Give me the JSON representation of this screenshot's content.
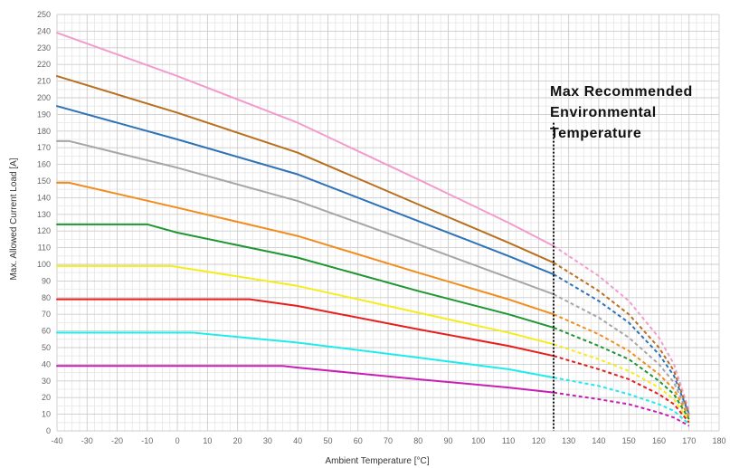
{
  "chart_data": {
    "type": "line",
    "title": "",
    "xlabel": "Ambient Temperature [°C]",
    "ylabel": "Max. Allowed Current Load [A]",
    "xlim": [
      -40,
      180
    ],
    "ylim": [
      0,
      250
    ],
    "x_ticks": [
      -40,
      -30,
      -20,
      -10,
      0,
      10,
      20,
      30,
      40,
      50,
      60,
      70,
      80,
      90,
      100,
      110,
      120,
      130,
      140,
      150,
      160,
      170,
      180
    ],
    "y_ticks": [
      0,
      10,
      20,
      30,
      40,
      50,
      60,
      70,
      80,
      90,
      100,
      110,
      120,
      130,
      140,
      150,
      160,
      170,
      180,
      190,
      200,
      210,
      220,
      230,
      240,
      250
    ],
    "grid": true,
    "legend": "none",
    "max_temp_marker": {
      "x": 125,
      "ymax": 185
    },
    "annotation": [
      "Max Recommended",
      "Environmental",
      "Temperature"
    ],
    "series": [
      {
        "color": "#f29ccd",
        "values": [
          [
            -40,
            239
          ],
          [
            0,
            213
          ],
          [
            40,
            185
          ],
          [
            80,
            151
          ],
          [
            110,
            125
          ],
          [
            125,
            111
          ],
          [
            140,
            93
          ],
          [
            150,
            78
          ],
          [
            160,
            56
          ],
          [
            165,
            40
          ],
          [
            170,
            12
          ]
        ]
      },
      {
        "color": "#b8701e",
        "values": [
          [
            -40,
            213
          ],
          [
            0,
            191
          ],
          [
            40,
            167
          ],
          [
            80,
            136
          ],
          [
            110,
            113
          ],
          [
            125,
            101
          ],
          [
            140,
            84
          ],
          [
            150,
            70
          ],
          [
            160,
            50
          ],
          [
            165,
            36
          ],
          [
            170,
            10
          ]
        ]
      },
      {
        "color": "#2e73b8",
        "values": [
          [
            -40,
            195
          ],
          [
            0,
            175
          ],
          [
            40,
            154
          ],
          [
            80,
            126
          ],
          [
            110,
            105
          ],
          [
            125,
            94
          ],
          [
            140,
            78
          ],
          [
            150,
            65
          ],
          [
            160,
            46
          ],
          [
            165,
            33
          ],
          [
            170,
            10
          ]
        ]
      },
      {
        "color": "#a6a6a6",
        "values": [
          [
            -40,
            174
          ],
          [
            -36,
            174
          ],
          [
            0,
            158
          ],
          [
            40,
            138
          ],
          [
            80,
            112
          ],
          [
            110,
            92
          ],
          [
            125,
            82
          ],
          [
            140,
            68
          ],
          [
            150,
            56
          ],
          [
            160,
            40
          ],
          [
            165,
            29
          ],
          [
            170,
            9
          ]
        ]
      },
      {
        "color": "#f28c1e",
        "values": [
          [
            -40,
            149
          ],
          [
            -36,
            149
          ],
          [
            0,
            134
          ],
          [
            40,
            117
          ],
          [
            80,
            95
          ],
          [
            110,
            79
          ],
          [
            125,
            70
          ],
          [
            140,
            58
          ],
          [
            150,
            48
          ],
          [
            160,
            34
          ],
          [
            165,
            25
          ],
          [
            170,
            8
          ]
        ]
      },
      {
        "color": "#1e9632",
        "values": [
          [
            -40,
            124
          ],
          [
            -10,
            124
          ],
          [
            0,
            119
          ],
          [
            40,
            104
          ],
          [
            80,
            84
          ],
          [
            110,
            70
          ],
          [
            125,
            62
          ],
          [
            140,
            51
          ],
          [
            150,
            43
          ],
          [
            160,
            30
          ],
          [
            165,
            22
          ],
          [
            170,
            7
          ]
        ]
      },
      {
        "color": "#f5ec1e",
        "values": [
          [
            -40,
            99
          ],
          [
            -2,
            99
          ],
          [
            40,
            87
          ],
          [
            80,
            71
          ],
          [
            110,
            59
          ],
          [
            125,
            52
          ],
          [
            140,
            43
          ],
          [
            150,
            36
          ],
          [
            160,
            26
          ],
          [
            165,
            19
          ],
          [
            170,
            6
          ]
        ]
      },
      {
        "color": "#e61e1e",
        "values": [
          [
            -40,
            79
          ],
          [
            24,
            79
          ],
          [
            40,
            75
          ],
          [
            80,
            61
          ],
          [
            110,
            51
          ],
          [
            125,
            45
          ],
          [
            140,
            37
          ],
          [
            150,
            31
          ],
          [
            160,
            22
          ],
          [
            165,
            16
          ],
          [
            170,
            5
          ]
        ]
      },
      {
        "color": "#1eecec",
        "values": [
          [
            -40,
            59
          ],
          [
            5,
            59
          ],
          [
            40,
            53
          ],
          [
            80,
            44
          ],
          [
            110,
            37
          ],
          [
            125,
            32
          ],
          [
            140,
            27
          ],
          [
            150,
            22
          ],
          [
            160,
            16
          ],
          [
            165,
            12
          ],
          [
            170,
            4
          ]
        ]
      },
      {
        "color": "#c81eb4",
        "values": [
          [
            -40,
            39
          ],
          [
            35,
            39
          ],
          [
            40,
            38
          ],
          [
            80,
            31
          ],
          [
            110,
            26
          ],
          [
            125,
            23
          ],
          [
            140,
            19
          ],
          [
            150,
            16
          ],
          [
            160,
            11
          ],
          [
            165,
            8
          ],
          [
            170,
            3
          ]
        ]
      }
    ]
  }
}
